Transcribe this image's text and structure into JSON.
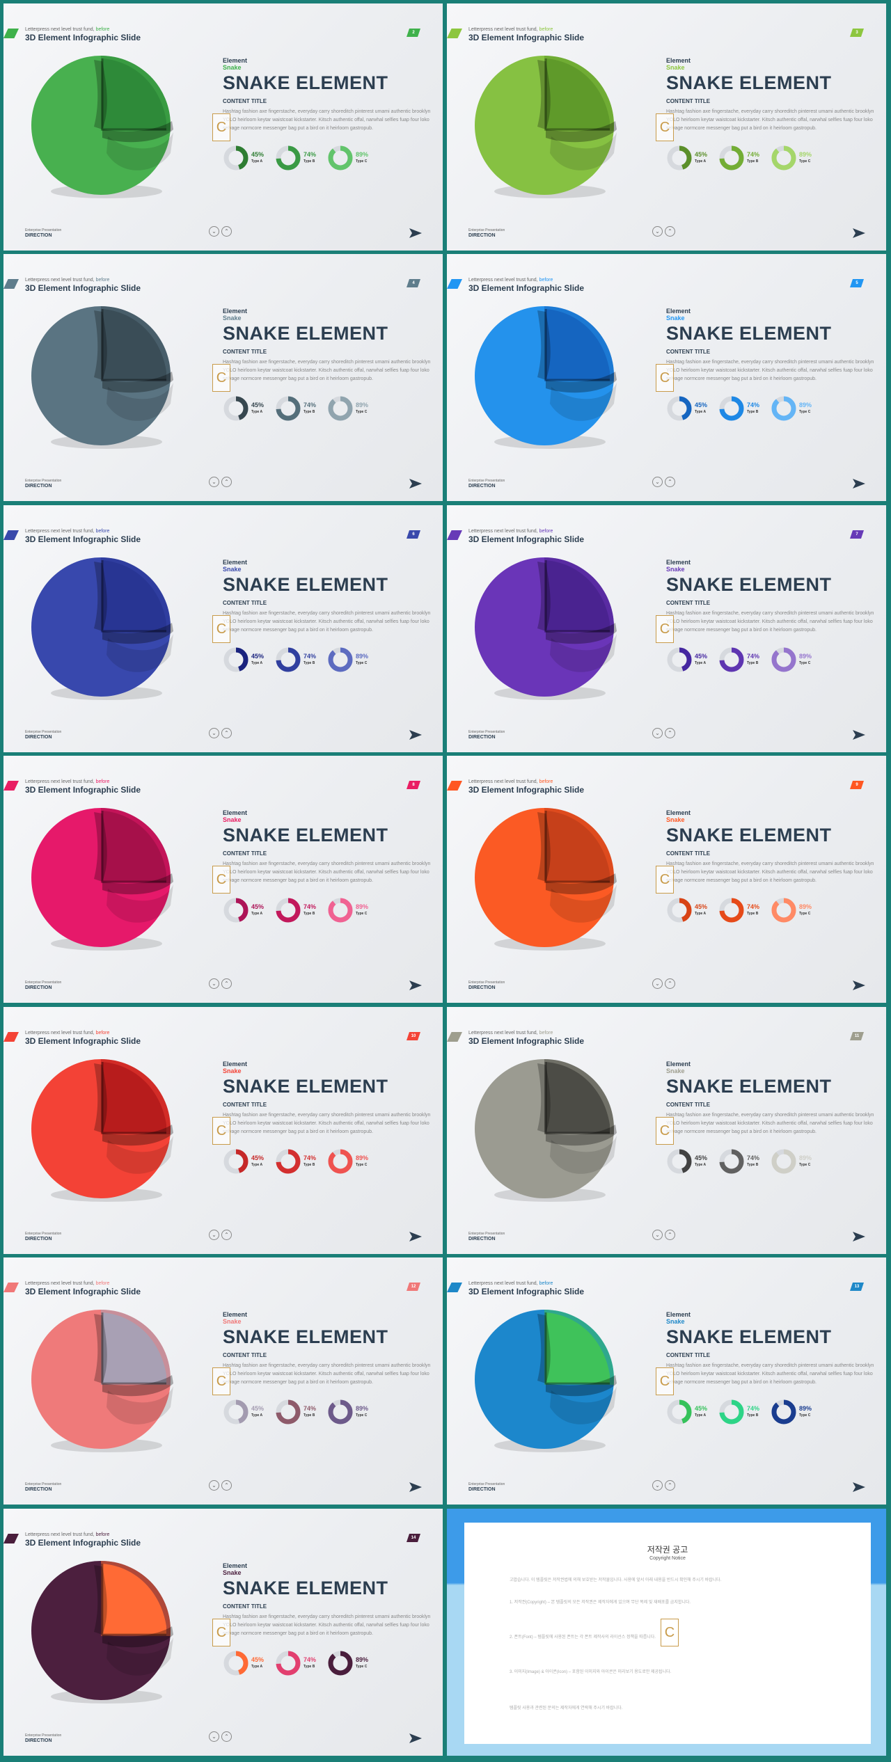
{
  "slide_common": {
    "subtitle": "Letterpress next level trust fund,",
    "subtitle_accent": "before",
    "title": "3D Element Infographic Slide",
    "element_label": "Element",
    "snake_label": "Snake",
    "heading": "SNAKE ELEMENT",
    "content_title": "CONTENT TITLE",
    "body_text": "Hashtag fashion axe fingerstache, everyday carry shoreditch pinterest umami authentic brooklyn YOLO heirloom keytar waistcoat kickstarter. Kitsch authentic offal, narwhal selfies fuap four loko selvage normcore messenger bag put a bird on it heirloom gastropub.",
    "footer_sub": "Enterprise Presentation",
    "footer_label": "DIRECTION",
    "stats": [
      {
        "percent": "45%",
        "value": 45,
        "label": "Type A"
      },
      {
        "percent": "74%",
        "value": 74,
        "label": "Type B"
      },
      {
        "percent": "89%",
        "value": 89,
        "label": "Type C"
      }
    ]
  },
  "slides": [
    {
      "page": "2",
      "accent": "#3fb14b",
      "outer": "#48b04f",
      "inner": "#2e8a39",
      "donuts": [
        "#2e7d32",
        "#3a9a45",
        "#62c46b"
      ]
    },
    {
      "page": "3",
      "accent": "#8dc63f",
      "outer": "#86c142",
      "inner": "#5f9a2a",
      "donuts": [
        "#5b8f2a",
        "#73ad35",
        "#a5d66a"
      ]
    },
    {
      "page": "4",
      "accent": "#5f7d8c",
      "outer": "#5a7482",
      "inner": "#3a4d57",
      "donuts": [
        "#37474f",
        "#546e7a",
        "#90a4ae"
      ]
    },
    {
      "page": "5",
      "accent": "#2196f3",
      "outer": "#2492ec",
      "inner": "#1565c0",
      "donuts": [
        "#1565c0",
        "#1e88e5",
        "#64b5f6"
      ]
    },
    {
      "page": "6",
      "accent": "#3949ab",
      "outer": "#3848ad",
      "inner": "#283593",
      "donuts": [
        "#1a237e",
        "#303f9f",
        "#5c6bc0"
      ]
    },
    {
      "page": "7",
      "accent": "#673ab7",
      "outer": "#6a35b8",
      "inner": "#4a2390",
      "donuts": [
        "#4527a0",
        "#5e35b1",
        "#9575cd"
      ]
    },
    {
      "page": "8",
      "accent": "#e91e63",
      "outer": "#e6196a",
      "inner": "#a6104a",
      "donuts": [
        "#ad1457",
        "#c2185b",
        "#f06292"
      ]
    },
    {
      "page": "9",
      "accent": "#ff5722",
      "outer": "#fb5a24",
      "inner": "#c6401a",
      "donuts": [
        "#d84315",
        "#e64a19",
        "#ff8a65"
      ]
    },
    {
      "page": "10",
      "accent": "#f44336",
      "outer": "#f34236",
      "inner": "#b71c1c",
      "donuts": [
        "#c62828",
        "#d32f2f",
        "#ef5350"
      ]
    },
    {
      "page": "11",
      "accent": "#9e9e8e",
      "outer": "#9b9b91",
      "inner": "#4c4c46",
      "donuts": [
        "#424242",
        "#616161",
        "#cfcfc7"
      ]
    },
    {
      "page": "12",
      "accent": "#f07878",
      "outer": "#ef7a7a",
      "inner": "#a8a0b4",
      "donuts": [
        "#a39bb0",
        "#8e5a6a",
        "#6d5a8a"
      ]
    },
    {
      "page": "13",
      "accent": "#1e88c8",
      "outer": "#1c87cc",
      "inner": "#3fc25a",
      "donuts": [
        "#35c25a",
        "#2dd487",
        "#1a3d8f"
      ]
    },
    {
      "page": "14",
      "accent": "#4a1e3c",
      "outer": "#4c1f3e",
      "inner": "#ff6a35",
      "donuts": [
        "#ff6a35",
        "#e23f6f",
        "#4a1e3c"
      ]
    }
  ],
  "copyright": {
    "title": "저작권 공고",
    "subtitle": "Copyright Notice",
    "paragraphs": [
      "고맙습니다. 이 템플릿은 저작권법에 의해 보호받는 저작물입니다. 사용에 앞서 아래 내용을 반드시 확인해 주시기 바랍니다.",
      "1. 저작권(Copyright) – 본 템플릿의 모든 저작권은 제작자에게 있으며 무단 복제 및 재배포를 금지합니다.",
      "2. 폰트(Font) – 템플릿에 사용된 폰트는 각 폰트 제작사의 라이선스 정책을 따릅니다.",
      "3. 이미지(Image) & 아이콘(Icon) – 포함된 이미지와 아이콘은 미리보기 용도로만 제공됩니다.",
      "템플릿 사용과 관련된 문의는 제작자에게 연락해 주시기 바랍니다."
    ]
  }
}
